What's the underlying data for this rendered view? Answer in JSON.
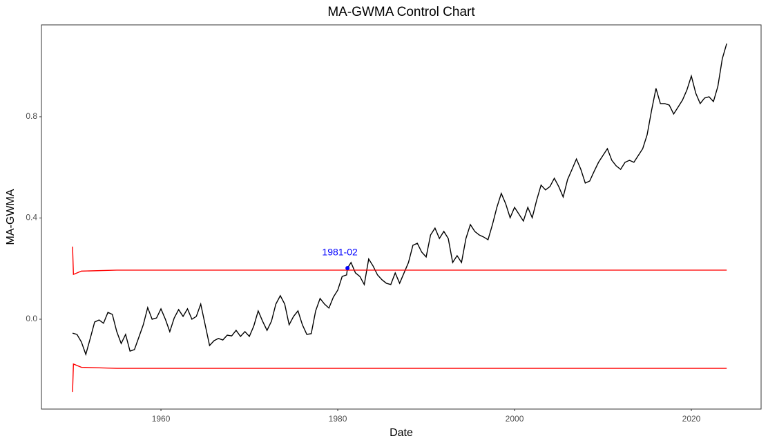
{
  "chart_data": {
    "type": "line",
    "title": "MA-GWMA Control Chart",
    "x_label": "Date",
    "y_label": "MA-GWMA",
    "xlim": [
      1946.48,
      2027.89
    ],
    "ylim": [
      -0.355,
      1.163
    ],
    "xticks": [
      1960,
      1980,
      2000,
      2020
    ],
    "yticks": [
      {
        "value": 0,
        "label": "0.0"
      },
      0.4,
      0.8
    ],
    "grid": false,
    "series": [
      {
        "color": "#000000",
        "x": [
          1950,
          1950.5,
          1951,
          1951.5,
          1952,
          1952.5,
          1953,
          1953.5,
          1954,
          1954.5,
          1955,
          1955.5,
          1956,
          1956.5,
          1957,
          1957.5,
          1958,
          1958.5,
          1959,
          1959.5,
          1960,
          1960.5,
          1961,
          1961.5,
          1962,
          1962.5,
          1963,
          1963.5,
          1964,
          1964.5,
          1965,
          1965.5,
          1966,
          1966.5,
          1967,
          1967.5,
          1968,
          1968.5,
          1969,
          1969.5,
          1970,
          1970.5,
          1971,
          1971.5,
          1972,
          1972.5,
          1973,
          1973.5,
          1974,
          1974.5,
          1975,
          1975.5,
          1976,
          1976.5,
          1977,
          1977.5,
          1978,
          1978.5,
          1979,
          1979.5,
          1980,
          1980.5,
          1981,
          1981.1,
          1981.5,
          1982,
          1982.5,
          1983,
          1983.5,
          1984,
          1984.5,
          1985,
          1985.5,
          1986,
          1986.5,
          1987,
          1987.5,
          1988,
          1988.5,
          1989,
          1989.5,
          1990,
          1990.5,
          1991,
          1991.5,
          1992,
          1992.5,
          1993,
          1993.5,
          1994,
          1994.5,
          1995,
          1995.5,
          1996,
          1996.5,
          1997,
          1997.5,
          1998,
          1998.5,
          1999,
          1999.5,
          2000,
          2000.5,
          2001,
          2001.5,
          2002,
          2002.5,
          2003,
          2003.5,
          2004,
          2004.5,
          2005,
          2005.5,
          2006,
          2006.5,
          2007,
          2007.5,
          2008,
          2008.5,
          2009,
          2009.5,
          2010,
          2010.5,
          2011,
          2011.5,
          2012,
          2012.5,
          2013,
          2013.5,
          2014,
          2014.5,
          2015,
          2015.5,
          2016,
          2016.5,
          2017,
          2017.5,
          2018,
          2018.5,
          2019,
          2019.5,
          2020,
          2020.5,
          2021,
          2021.5,
          2022,
          2022.5,
          2023,
          2023.5,
          2024
        ],
        "values": [
          -0.055,
          -0.06,
          -0.09,
          -0.139,
          -0.076,
          -0.011,
          -0.003,
          -0.016,
          0.027,
          0.019,
          -0.049,
          -0.096,
          -0.06,
          -0.126,
          -0.12,
          -0.071,
          -0.022,
          0.046,
          0,
          0.005,
          0.041,
          0,
          -0.049,
          0.005,
          0.038,
          0.011,
          0.041,
          0,
          0.011,
          0.06,
          -0.022,
          -0.104,
          -0.085,
          -0.076,
          -0.082,
          -0.063,
          -0.066,
          -0.044,
          -0.068,
          -0.049,
          -0.068,
          -0.027,
          0.033,
          -0.008,
          -0.044,
          -0.008,
          0.06,
          0.093,
          0.06,
          -0.022,
          0.011,
          0.033,
          -0.022,
          -0.06,
          -0.057,
          0.033,
          0.082,
          0.06,
          0.044,
          0.087,
          0.115,
          0.169,
          0.175,
          0.202,
          0.224,
          0.183,
          0.169,
          0.137,
          0.238,
          0.21,
          0.175,
          0.156,
          0.142,
          0.137,
          0.183,
          0.142,
          0.183,
          0.224,
          0.292,
          0.3,
          0.265,
          0.246,
          0.333,
          0.36,
          0.319,
          0.347,
          0.319,
          0.224,
          0.251,
          0.224,
          0.319,
          0.374,
          0.347,
          0.333,
          0.325,
          0.314,
          0.374,
          0.442,
          0.497,
          0.456,
          0.401,
          0.442,
          0.415,
          0.388,
          0.442,
          0.401,
          0.47,
          0.53,
          0.511,
          0.524,
          0.557,
          0.524,
          0.483,
          0.552,
          0.592,
          0.633,
          0.592,
          0.538,
          0.546,
          0.584,
          0.62,
          0.647,
          0.674,
          0.628,
          0.606,
          0.592,
          0.62,
          0.628,
          0.62,
          0.647,
          0.674,
          0.729,
          0.825,
          0.912,
          0.852,
          0.852,
          0.846,
          0.811,
          0.838,
          0.866,
          0.906,
          0.961,
          0.893,
          0.852,
          0.874,
          0.879,
          0.86,
          0.92,
          1.029,
          1.089
        ]
      },
      {
        "color": "#ff0000",
        "x": [
          1950,
          1950.1,
          1951,
          1955,
          2024
        ],
        "values": [
          0.287,
          0.177,
          0.19,
          0.194,
          0.194
        ]
      },
      {
        "color": "#ff0000",
        "x": [
          1950,
          1950.1,
          1951,
          1955,
          2024
        ],
        "values": [
          -0.287,
          -0.177,
          -0.19,
          -0.194,
          -0.194
        ]
      }
    ],
    "annotations": [
      {
        "text": "1981-02",
        "x": 1981.1,
        "y": 0.202,
        "color": "#0000ff"
      }
    ]
  }
}
